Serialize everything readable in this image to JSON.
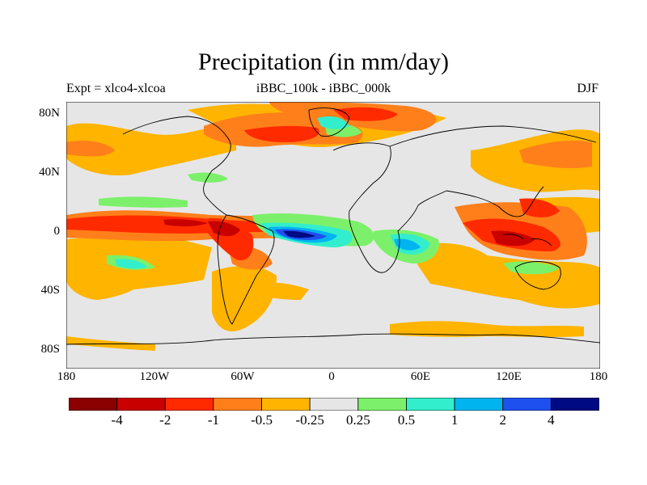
{
  "figure": {
    "title": "Precipitation (in mm/day)",
    "subtitle_left": "Expt = xlco4-xlcoa",
    "subtitle_center": "iBBC_100k - iBBC_000k",
    "subtitle_right": "DJF"
  },
  "axes": {
    "y_ticks": [
      "80N",
      "40N",
      "0",
      "40S",
      "80S"
    ],
    "x_ticks": [
      "180",
      "120W",
      "60W",
      "0",
      "60E",
      "120E",
      "180"
    ]
  },
  "colorbar": {
    "colors": [
      "#8b0000",
      "#c80000",
      "#ff2a00",
      "#ff7f1a",
      "#ffb400",
      "#e6e6e6",
      "#7cf06a",
      "#33eecc",
      "#00b4f0",
      "#1e50f0",
      "#000a82"
    ],
    "labels": [
      "-4",
      "-2",
      "-1",
      "-0.5",
      "-0.25",
      "0.25",
      "0.5",
      "1",
      "2",
      "4"
    ]
  },
  "colors": {
    "background": "#e6e6e6",
    "coast": "#000000"
  }
}
